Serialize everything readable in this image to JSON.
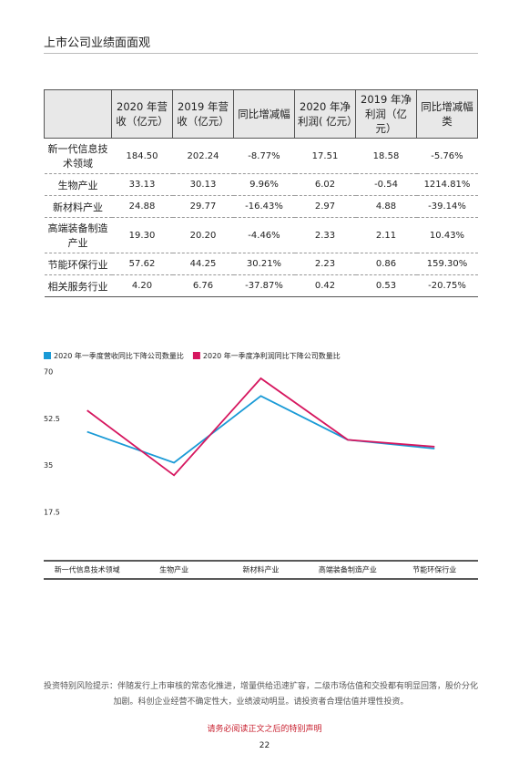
{
  "header": {
    "title": "上市公司业绩面面观"
  },
  "table": {
    "header": [
      "2020 年营收（亿元）",
      "2019 年营收（亿元）",
      "同比增减幅",
      "2020 年净利润( 亿元）",
      "2019 年净利润（亿元）",
      "同比增减幅类"
    ],
    "rows": [
      [
        "新一代信息技术领域",
        "184.50",
        "202.24",
        "-8.77%",
        "17.51",
        "18.58",
        "-5.76%"
      ],
      [
        "生物产业",
        "33.13",
        "30.13",
        "9.96%",
        "6.02",
        "-0.54",
        "1214.81%"
      ],
      [
        "新材料产业",
        "24.88",
        "29.77",
        "-16.43%",
        "2.97",
        "4.88",
        "-39.14%"
      ],
      [
        "高端装备制造产业",
        "19.30",
        "20.20",
        "-4.46%",
        "2.33",
        "2.11",
        "10.43%"
      ],
      [
        "节能环保行业",
        "57.62",
        "44.25",
        "30.21%",
        "2.23",
        "0.86",
        "159.30%"
      ],
      [
        "相关服务行业",
        "4.20",
        "6.76",
        "-37.87%",
        "0.42",
        "0.53",
        "-20.75%"
      ]
    ]
  },
  "chart_data": {
    "type": "line",
    "categories": [
      "新一代信息技术领域",
      "生物产业",
      "新材料产业",
      "高端装备制造产业",
      "节能环保行业"
    ],
    "series": [
      {
        "name": "2020 年一季度营收同比下降公司数量比",
        "color": "#1a9ad6",
        "values": [
          48.3,
          36.7,
          61.7,
          45.3,
          42
        ]
      },
      {
        "name": "2020 年一季度净利润同比下降公司数量比",
        "color": "#d6175f",
        "values": [
          56.3,
          32,
          68.3,
          45.3,
          42.7
        ]
      }
    ],
    "ylim": [
      0,
      70
    ],
    "yticks": [
      17.5,
      35,
      52.5,
      70
    ]
  },
  "footer": {
    "risk": "投资特别风险提示：伴随发行上市审核的常态化推进，增量供给迅速扩容，二级市场估值和交投都有明显回落，股价分化加剧。科创企业经营不确定性大，业绩波动明显。请投资者合理估值并理性投资。",
    "notice": "请务必阅读正文之后的特别声明",
    "page": "22"
  }
}
